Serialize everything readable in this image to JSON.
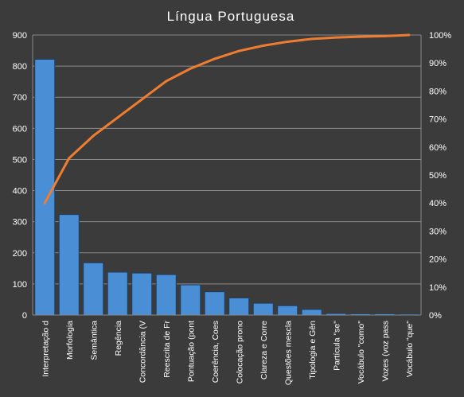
{
  "chart_data": {
    "type": "bar",
    "title": "Língua Portuguesa",
    "categories": [
      "Interpretação d",
      "Morfologia",
      "Semântica",
      "Regência",
      "Concordância (V",
      "Reescrita de Fr",
      "Pontuação (pont",
      "Coerência, Coes",
      "Colocação prono",
      "Clareza e Corre",
      "Questões mescla",
      "Tipologia e Gên",
      "Partícula \"se\"",
      "Vocábulo \"como\"",
      "Vozes (voz pass",
      "Vocábulo \"que\""
    ],
    "series": [
      {
        "type": "bar",
        "values": [
          822,
          323,
          168,
          138,
          135,
          130,
          97,
          75,
          55,
          38,
          30,
          18,
          5,
          4,
          4,
          3
        ]
      },
      {
        "type": "line",
        "axis": "right",
        "values": [
          40,
          56,
          64,
          70.5,
          77,
          83.5,
          88,
          91.5,
          94.3,
          96.2,
          97.6,
          98.6,
          99.1,
          99.4,
          99.6,
          100
        ]
      }
    ],
    "ylim": [
      0,
      900
    ],
    "yticks": [
      "0",
      "100",
      "200",
      "300",
      "400",
      "500",
      "600",
      "700",
      "800",
      "900"
    ],
    "y2lim": [
      0,
      100
    ],
    "y2ticks": [
      "0%",
      "10%",
      "20%",
      "30%",
      "40%",
      "50%",
      "60%",
      "70%",
      "80%",
      "90%",
      "100%"
    ],
    "grid": true,
    "colors": {
      "background": "#3b3b3b",
      "bar": "#4a8fd6",
      "bar_edge": "#1c3f66",
      "line": "#ee7d31",
      "grid": "#8a8a8a",
      "text": "#ffffff"
    }
  }
}
